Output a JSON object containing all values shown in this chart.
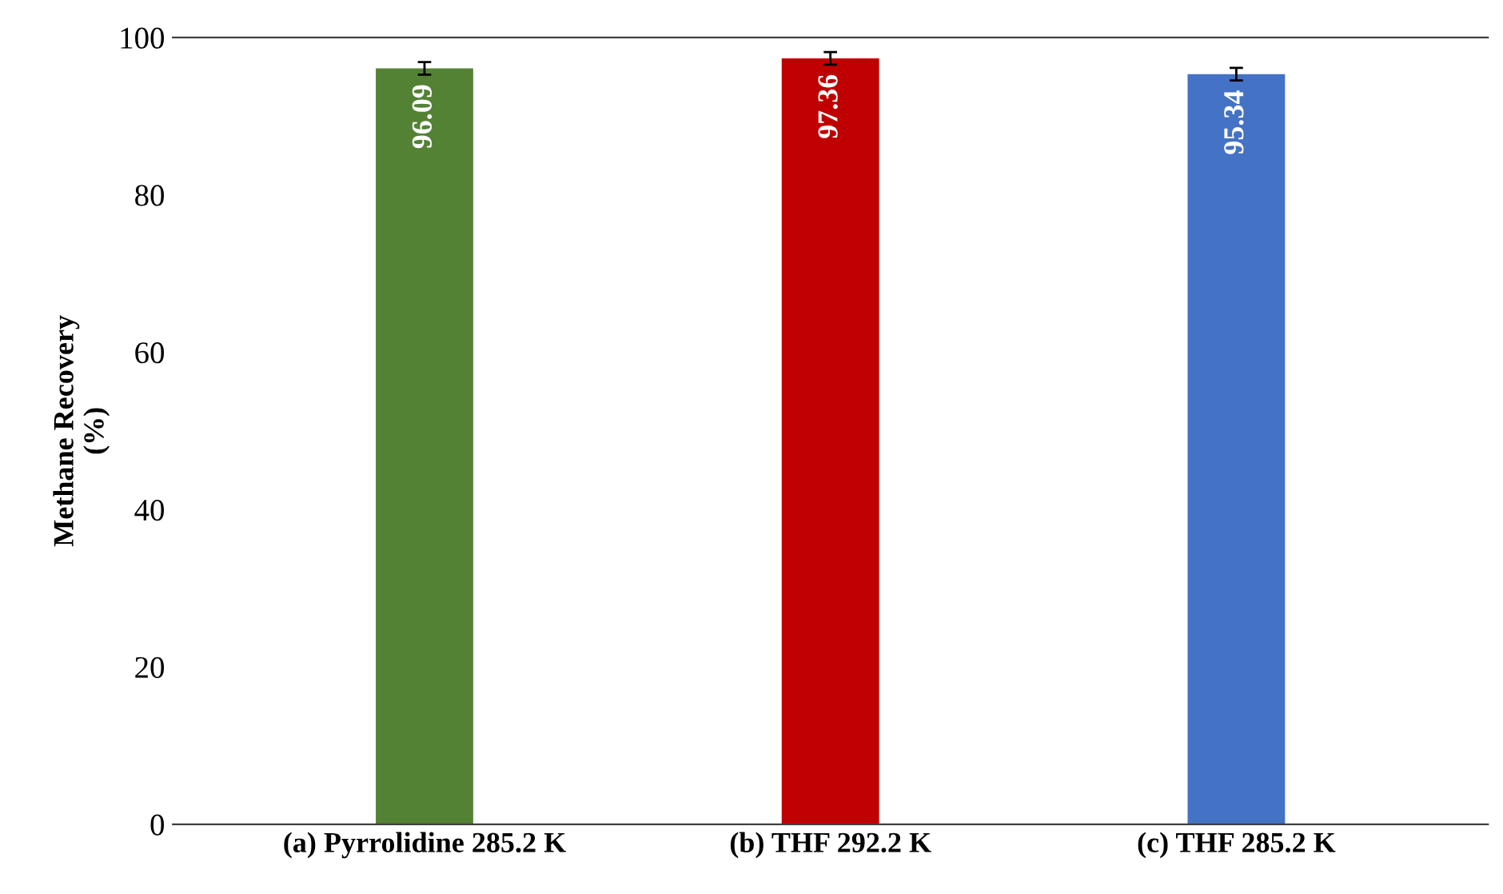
{
  "chart_data": {
    "type": "bar",
    "ylabel": "Methane Recovery\n(%)",
    "categories": [
      "(a) Pyrrolidine 285.2 K",
      "(b) THF 292.2 K",
      "(c) THF 285.2 K"
    ],
    "values": [
      96.09,
      97.36,
      95.34
    ],
    "colors": [
      "#548235",
      "#c00000",
      "#4472c4"
    ],
    "errors": [
      0.8,
      0.8,
      0.8
    ],
    "data_labels": true,
    "ylim": [
      0,
      100
    ],
    "yticks": [
      0,
      20,
      40,
      60,
      80,
      100
    ],
    "grid": false,
    "legend": false
  }
}
